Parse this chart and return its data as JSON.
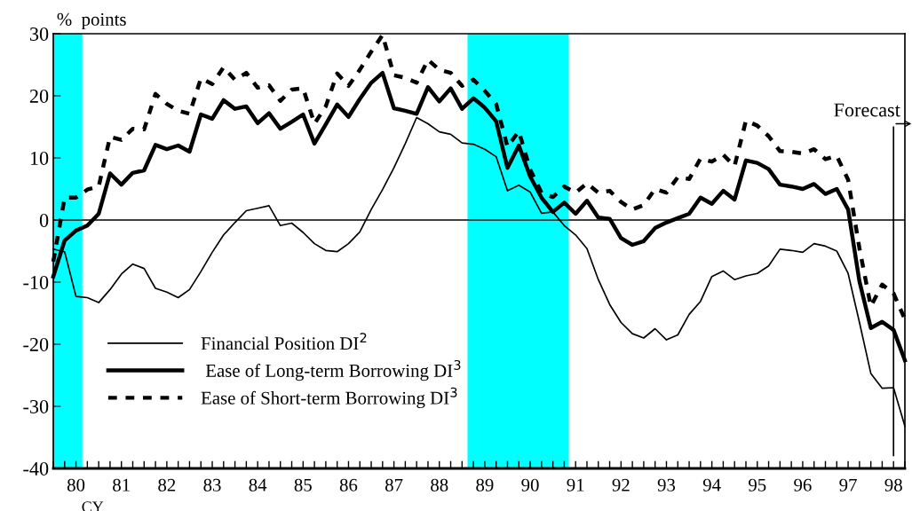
{
  "chart_data": {
    "type": "line",
    "ylabel": "%  points",
    "legend": "bottom left",
    "grid": false,
    "x": [
      79.5,
      79.75,
      80,
      80.25,
      80.5,
      80.75,
      81,
      81.25,
      81.5,
      81.75,
      82,
      82.25,
      82.5,
      82.75,
      83,
      83.25,
      83.5,
      83.75,
      84,
      84.25,
      84.5,
      84.75,
      85,
      85.25,
      85.5,
      85.75,
      86,
      86.25,
      86.5,
      86.75,
      87,
      87.25,
      87.5,
      87.75,
      88,
      88.25,
      88.5,
      88.75,
      89,
      89.25,
      89.5,
      89.75,
      90,
      90.25,
      90.5,
      90.75,
      91,
      91.25,
      91.5,
      91.75,
      92,
      92.25,
      92.5,
      92.75,
      93,
      93.25,
      93.5,
      93.75,
      94,
      94.25,
      94.5,
      94.75,
      95,
      95.25,
      95.5,
      95.75,
      96,
      96.25,
      96.5,
      96.75,
      97,
      97.25,
      97.5,
      97.75,
      98,
      98.25
    ],
    "series": [
      {
        "name": "Financial Position DI$^{2}$",
        "color": "#000000",
        "line_style": "solid",
        "values": [
          -4.7,
          -5.1,
          -12.3,
          -12.5,
          -13.3,
          -11.2,
          -8.7,
          -7.1,
          -7.8,
          -11.0,
          -11.6,
          -12.5,
          -11.2,
          -8.3,
          -5.2,
          -2.4,
          -0.4,
          1.5,
          1.9,
          2.3,
          -0.9,
          -0.5,
          -2.0,
          -3.8,
          -4.9,
          -5.1,
          -3.8,
          -1.9,
          1.7,
          4.9,
          8.4,
          12.3,
          16.5,
          15.5,
          14.2,
          13.8,
          12.4,
          12.2,
          11.4,
          10.2,
          4.7,
          5.6,
          4.5,
          1.1,
          1.3,
          -0.9,
          -2.4,
          -4.6,
          -9.6,
          -13.6,
          -16.5,
          -18.3,
          -19.0,
          -17.5,
          -19.3,
          -18.5,
          -15.2,
          -13.1,
          -9.1,
          -8.2,
          -9.6,
          -9.0,
          -8.6,
          -7.4,
          -4.7,
          -4.9,
          -5.2,
          -3.8,
          -4.2,
          -5.0,
          -8.6,
          -16.5,
          -24.7,
          -27.1,
          -27.0,
          -33.2
        ]
      },
      {
        "name": " Ease of Long-term Borrowing DI$^{3}$",
        "color": "#000000",
        "line_style": "solid",
        "values": [
          -9.1,
          -3.3,
          -1.7,
          -0.9,
          1.0,
          7.5,
          5.7,
          7.6,
          8.0,
          12.1,
          11.4,
          12.0,
          11.0,
          17.0,
          16.3,
          19.3,
          17.9,
          18.3,
          15.6,
          17.2,
          14.7,
          15.8,
          17.0,
          12.3,
          15.4,
          18.6,
          16.6,
          19.5,
          22.1,
          23.7,
          18.0,
          17.6,
          17.1,
          21.4,
          19.1,
          21.2,
          17.9,
          19.6,
          18.1,
          15.9,
          8.4,
          12.0,
          7.0,
          3.6,
          1.3,
          2.8,
          1.0,
          3.1,
          0.4,
          0.2,
          -2.9,
          -4.0,
          -3.4,
          -1.3,
          -0.4,
          0.3,
          1.0,
          3.6,
          2.6,
          4.7,
          3.3,
          9.6,
          9.2,
          8.2,
          5.7,
          5.4,
          5.0,
          5.8,
          4.2,
          5.0,
          1.7,
          -9.9,
          -17.4,
          -16.4,
          -17.7,
          -22.6
        ]
      },
      {
        "name": "Ease of Short-term Borrowing DI$^{3}$",
        "color": "#000000",
        "line_style": "dashed",
        "values": [
          -6.7,
          3.6,
          3.6,
          4.9,
          5.4,
          13.4,
          12.9,
          14.7,
          14.6,
          20.3,
          18.7,
          17.6,
          17.1,
          22.8,
          21.9,
          24.6,
          22.6,
          23.7,
          21.3,
          21.7,
          19.2,
          21.0,
          21.2,
          15.5,
          18.3,
          23.6,
          21.6,
          24.2,
          27.1,
          29.8,
          23.3,
          22.9,
          22.1,
          25.8,
          24.2,
          23.7,
          21.6,
          22.6,
          20.8,
          18.7,
          11.8,
          14.3,
          8.1,
          4.4,
          3.7,
          5.4,
          4.4,
          5.9,
          4.4,
          4.7,
          2.9,
          1.7,
          2.4,
          5.0,
          4.4,
          6.9,
          6.6,
          9.9,
          9.4,
          10.5,
          8.7,
          16.0,
          15.2,
          13.5,
          11.1,
          11.0,
          10.7,
          11.4,
          9.8,
          10.3,
          6.5,
          -4.6,
          -13.9,
          -10.4,
          -11.8,
          -16.0
        ]
      }
    ],
    "xlim": [
      79.5,
      98.25
    ],
    "ylim": [
      -40,
      30
    ],
    "yticks": [
      -40,
      -30,
      -20,
      -10,
      0,
      10,
      20,
      30
    ],
    "xticks": [
      80,
      81,
      82,
      83,
      84,
      85,
      86,
      87,
      88,
      89,
      90,
      91,
      92,
      93,
      94,
      95,
      96,
      97,
      98
    ],
    "bands": [
      {
        "axis": "x",
        "from": 79.5,
        "to": 80.14,
        "label": null,
        "color": "#00ffff"
      },
      {
        "axis": "x",
        "from": 88.62,
        "to": 90.85,
        "label": null,
        "color": "#00ffff"
      }
    ],
    "ref_lines": [
      {
        "axis": "y",
        "value": 0,
        "label": null,
        "color": "#000000",
        "line_style": "solid"
      },
      {
        "axis": "x",
        "value": 98,
        "label": "Forecast",
        "color": "#000000",
        "line_style": "solid"
      }
    ],
    "annotations": [
      "CY"
    ]
  }
}
